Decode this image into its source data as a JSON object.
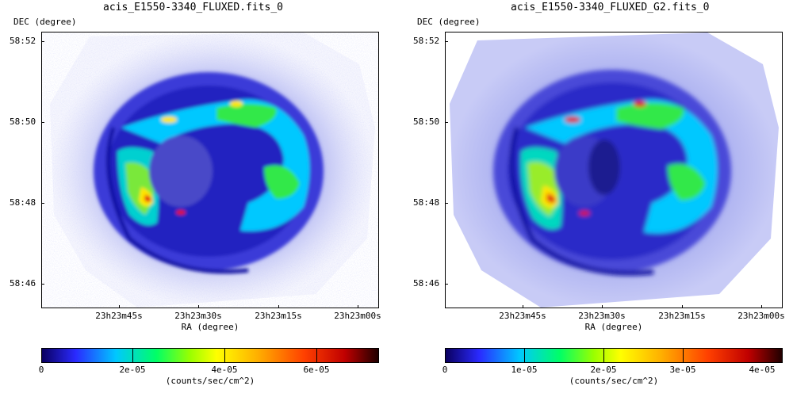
{
  "panels": [
    {
      "title": "acis_E1550-3340_FLUXED.fits_0",
      "ylabel": "DEC (degree)",
      "xlabel": "RA (degree)",
      "yticks": [
        "58:52",
        "58:50",
        "58:48",
        "58:46"
      ],
      "xticks": [
        "23h23m45s",
        "23h23m30s",
        "23h23m15s",
        "23h23m00s"
      ],
      "colorbar_ticks": [
        "0",
        "2e-05",
        "4e-05",
        "6e-05"
      ],
      "colorbar_unit": "(counts/sec/cm^2)"
    },
    {
      "title": "acis_E1550-3340_FLUXED_G2.fits_0",
      "ylabel": "DEC (degree)",
      "xlabel": "RA (degree)",
      "yticks": [
        "58:52",
        "58:50",
        "58:48",
        "58:46"
      ],
      "xticks": [
        "23h23m45s",
        "23h23m30s",
        "23h23m15s",
        "23h23m00s"
      ],
      "colorbar_ticks": [
        "0",
        "1e-05",
        "2e-05",
        "3e-05",
        "4e-05"
      ],
      "colorbar_unit": "(counts/sec/cm^2)"
    }
  ],
  "colors": {
    "background_glow": "#b8bcf4",
    "shell_blue": "#1a1ad8",
    "shell_cyan": "#00c8ff",
    "shell_green": "#33e84a",
    "shell_yellow": "#ffe600",
    "shell_red": "#e01010"
  }
}
